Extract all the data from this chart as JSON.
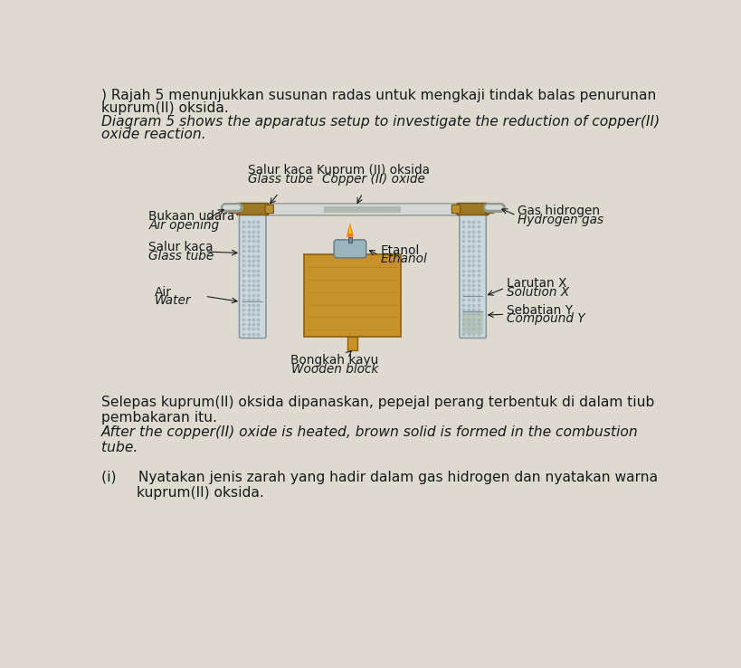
{
  "bg_color": "#dedad0",
  "title_text_1": ") Rajah 5 menunjukkan susunan radas untuk mengkaji tindak balas penurunan",
  "title_text_2": "kuprum(II) oksida.",
  "title_text_3": "Diagram 5 shows the apparatus setup to investigate the reduction of copper(II)",
  "title_text_4": "oxide reaction.",
  "para1_text_1": "Selepas kuprum(II) oksida dipanaskan, pepejal perang terbentuk di dalam tiub",
  "para1_text_2": "pembakaran itu.",
  "para1_text_3": "After the copper(II) oxide is heated, brown solid is formed in the combustion",
  "para1_text_4": "tube.",
  "para2_text_1": "(i)     Nyatakan jenis zarah yang hadir dalam gas hidrogen dan nyatakan warna",
  "para2_text_2": "        kuprum(II) oksida.",
  "diagram_labels": {
    "salur_kaca_1": "Salur kaca",
    "glass_tube_1": "Glass tube",
    "kuprum": "Kuprum (II) oksida",
    "copper": "Copper (II) oxide",
    "gas_hidrogen": "Gas hidrogen",
    "hydrogen_gas": "Hydrogen gas",
    "bukaan_udara": "Bukaan udara",
    "air_opening": "Air opening",
    "salur_kaca_2": "Salur kaca",
    "glass_tube_2": "Glass tube",
    "air": "Air",
    "water": "Water",
    "etanol": "Etanol",
    "ethanol": "Ethanol",
    "larutan_x": "Larutan X",
    "solution_x": "Solution X",
    "sebatian_y": "Sebatian Y",
    "compound_y": "Compound Y",
    "bongkah_kayu": "Bongkah kayu",
    "wooden_block": "Wooden block"
  },
  "colors": {
    "wooden_block_face": "#c8922a",
    "wooden_block_side": "#a07020",
    "wooden_block_top": "#d8a840",
    "wooden_block_edge": "#8a6010",
    "stopper_brown": "#9B7824",
    "stopper_edge": "#7a5010",
    "pipe_fill": "#d4d8d4",
    "pipe_edge": "#909890",
    "tube_fill": "#cdd8dc",
    "tube_edge": "#8898a0",
    "water_fill": "#b8ccd8",
    "liquid_fill": "#c0ccd0",
    "compound_fill": "#b8c4b8",
    "lamp_body": "#9ab4bc",
    "lamp_edge": "#607880",
    "flame_orange": "#e88000",
    "flame_yellow": "#f8d000",
    "dot_color": "#a0b4bc"
  }
}
